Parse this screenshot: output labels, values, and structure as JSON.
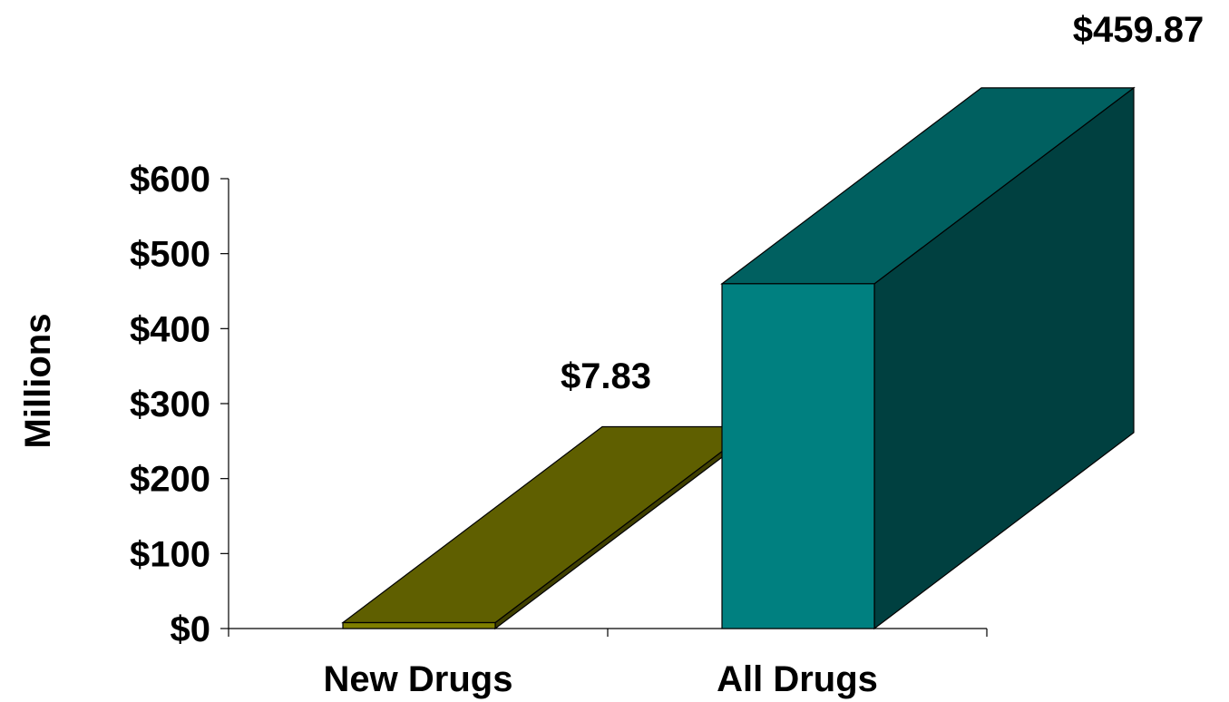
{
  "chart_data": {
    "type": "bar",
    "three_d": true,
    "categories": [
      "New Drugs",
      "All Drugs"
    ],
    "values": [
      7.83,
      459.87
    ],
    "value_labels": [
      "$7.83",
      "$459.87"
    ],
    "ylabel": "Millions",
    "ylim": [
      0,
      600
    ],
    "yticks": [
      0,
      100,
      200,
      300,
      400,
      500,
      600
    ],
    "ytick_labels": [
      "$0",
      "$100",
      "$200",
      "$300",
      "$400",
      "$500",
      "$600"
    ],
    "grid": false,
    "legend": "none",
    "colors": {
      "New Drugs": {
        "front": "#7f7f00",
        "top": "#5f5f00",
        "side": "#3f3f00"
      },
      "All Drugs": {
        "front": "#008080",
        "top": "#006060",
        "side": "#004040"
      }
    }
  }
}
